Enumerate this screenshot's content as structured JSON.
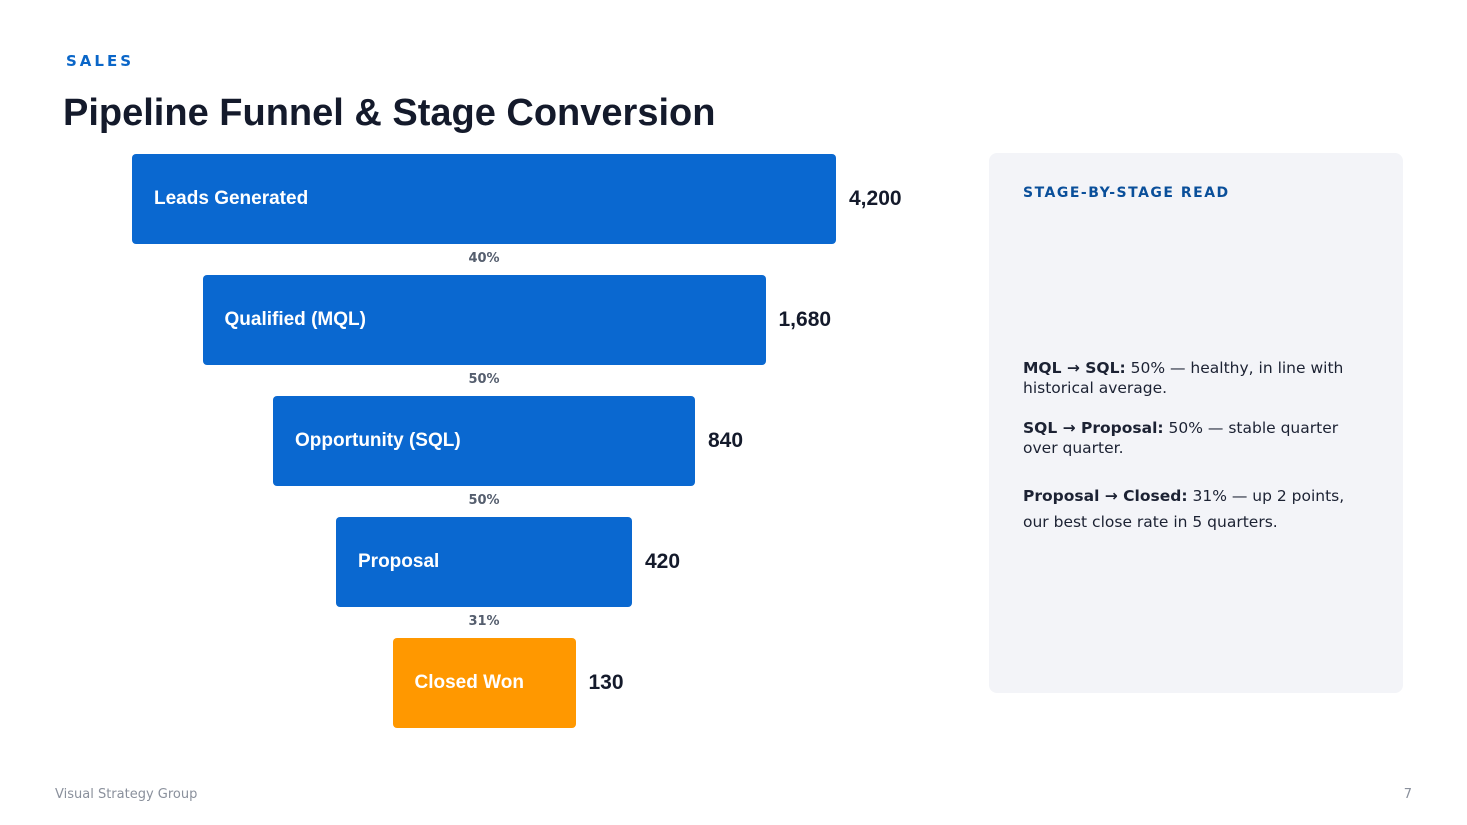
{
  "header": {
    "eyebrow": "SALES",
    "title": "Pipeline Funnel & Stage Conversion"
  },
  "colors": {
    "stage": "#0a68d0",
    "won": "#ff9800"
  },
  "chart_data": {
    "type": "bar",
    "subtype": "funnel",
    "title": "",
    "categories": [
      "Leads Generated",
      "Qualified (MQL)",
      "Opportunity (SQL)",
      "Proposal",
      "Closed Won"
    ],
    "values": [
      4200,
      1680,
      840,
      420,
      130
    ],
    "value_labels": [
      "4,200",
      "1,680",
      "840",
      "420",
      "130"
    ],
    "conversion_labels": [
      "40%",
      "50%",
      "50%",
      "31%"
    ],
    "highlight_index": 4
  },
  "panel": {
    "heading": "STAGE-BY-STAGE READ",
    "notes": [
      {
        "label": "MQL → SQL:",
        "text": " 50% — healthy, in line with historical average."
      },
      {
        "label": "SQL → Proposal:",
        "text": " 50% — stable quarter over quarter."
      },
      {
        "label": "Proposal → Closed:",
        "text": " 31% — up 2 points, our best close rate in 5 quarters."
      }
    ]
  },
  "footer": {
    "company": "Visual Strategy Group",
    "page_number": "7"
  }
}
